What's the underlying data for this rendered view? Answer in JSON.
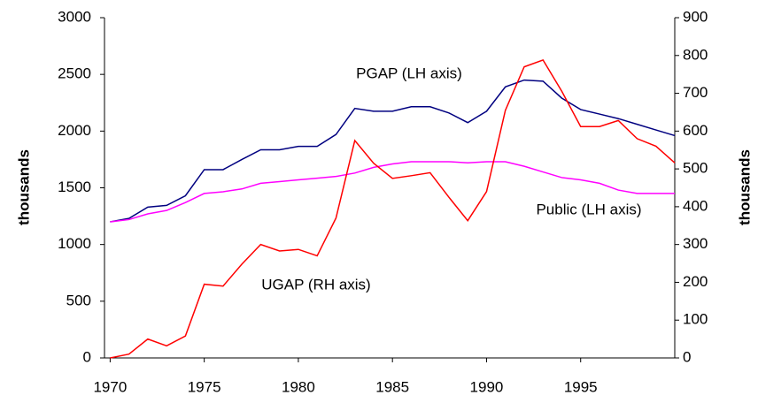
{
  "chart_data": {
    "type": "line",
    "y_label": "thousands",
    "y2_label": "thousands",
    "x": [
      1970,
      1971,
      1972,
      1973,
      1974,
      1975,
      1976,
      1977,
      1978,
      1979,
      1980,
      1981,
      1982,
      1983,
      1984,
      1985,
      1986,
      1987,
      1988,
      1989,
      1990,
      1991,
      1992,
      1993,
      1994,
      1995,
      1996,
      1997,
      1998,
      1999,
      2000
    ],
    "series": [
      {
        "name": "PGAP (LH axis)",
        "color": "#000080",
        "axis": "y",
        "values": [
          1200,
          1230,
          1330,
          1345,
          1430,
          1660,
          1660,
          1750,
          1835,
          1835,
          1865,
          1865,
          1970,
          2200,
          2175,
          2175,
          2215,
          2215,
          2160,
          2075,
          2175,
          2390,
          2450,
          2440,
          2290,
          2190,
          2150,
          2110,
          2060,
          2010,
          1960
        ]
      },
      {
        "name": "Public (LH axis)",
        "color": "#ff00ff",
        "axis": "y",
        "values": [
          1200,
          1220,
          1270,
          1300,
          1370,
          1450,
          1465,
          1490,
          1540,
          1555,
          1570,
          1585,
          1600,
          1630,
          1680,
          1710,
          1730,
          1730,
          1730,
          1720,
          1730,
          1730,
          1690,
          1640,
          1590,
          1570,
          1540,
          1480,
          1450,
          1450,
          1450
        ]
      },
      {
        "name": "UGAP (RH axis)",
        "color": "#ff0000",
        "axis": "y2",
        "values": [
          0,
          10,
          50,
          32,
          58,
          195,
          190,
          248,
          300,
          283,
          287,
          270,
          370,
          575,
          515,
          475,
          482,
          490,
          425,
          363,
          440,
          655,
          770,
          788,
          705,
          612,
          612,
          628,
          580,
          560,
          516
        ]
      }
    ],
    "xlim": [
      1969.7,
      2000
    ],
    "xticks": [
      1970,
      1975,
      1980,
      1985,
      1990,
      1995
    ],
    "ylim": [
      0,
      3000
    ],
    "yticks": [
      0,
      500,
      1000,
      1500,
      2000,
      2500,
      3000
    ],
    "y2lim": [
      0,
      900
    ],
    "y2ticks": [
      0,
      100,
      200,
      300,
      400,
      500,
      600,
      700,
      800,
      900
    ],
    "grid": false
  }
}
